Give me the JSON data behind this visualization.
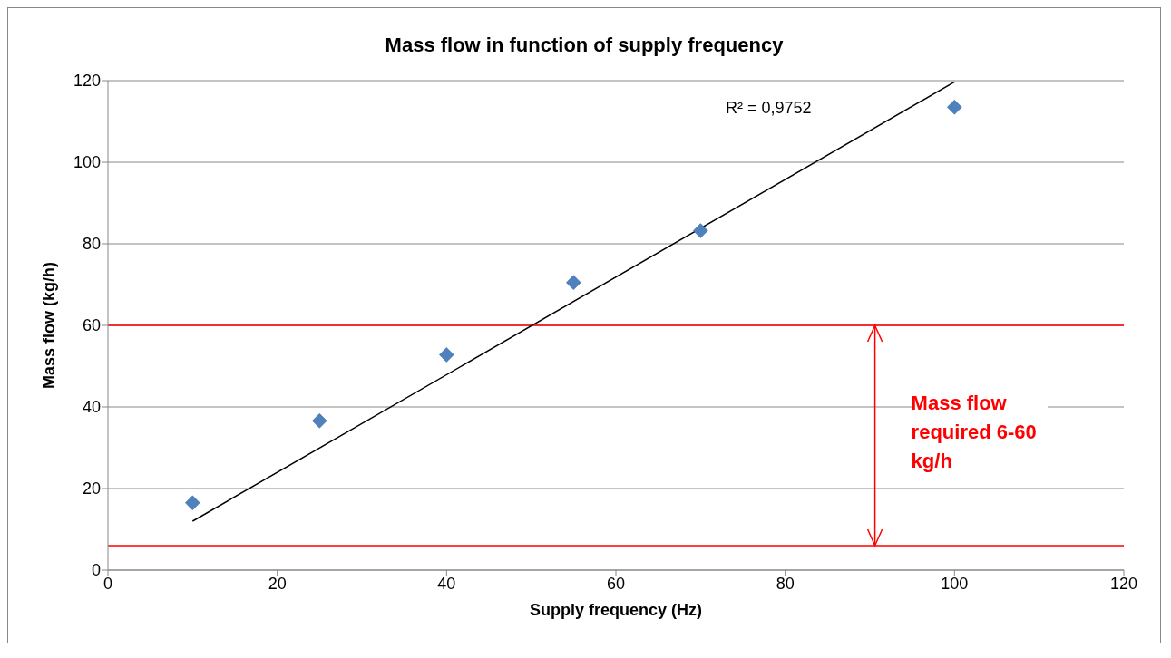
{
  "chart_data": {
    "type": "scatter",
    "title": "Mass flow in function of supply frequency",
    "xlabel": "Supply frequency (Hz)",
    "ylabel": "Mass flow  (kg/h)",
    "series": [
      {
        "color": "#4f81bd",
        "marker": "diamond",
        "x": [
          10,
          25,
          40,
          55,
          70,
          100
        ],
        "values": [
          16.5,
          36.6,
          52.8,
          70.5,
          83.2,
          113.5
        ]
      },
      {
        "type": "line",
        "color": "#000000",
        "marker": "none",
        "x": [
          10,
          100
        ],
        "values": [
          12,
          119.7
        ]
      }
    ],
    "grid": "y",
    "legend": false,
    "xlim": [
      0,
      120
    ],
    "xticks": [
      0,
      20,
      40,
      60,
      80,
      100,
      120
    ],
    "ylim": [
      0,
      120
    ],
    "yticks": [
      0,
      20,
      40,
      60,
      80,
      100,
      120
    ],
    "ref_lines": [
      {
        "axis": "y",
        "value": 60,
        "label": "Mass flow required 6-60 kg/h",
        "color": "#ff0000"
      },
      {
        "axis": "y",
        "value": 6,
        "color": "#ff0000"
      }
    ],
    "annotations": [
      "R² = 0,9752"
    ]
  }
}
